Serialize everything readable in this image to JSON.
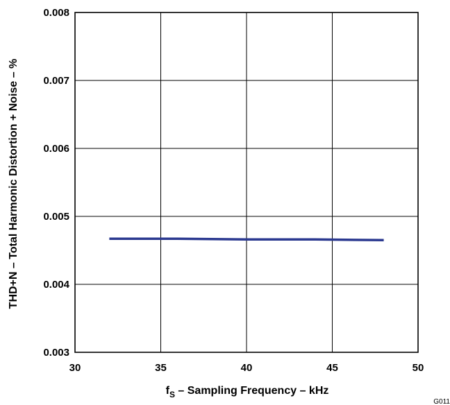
{
  "chart_data": {
    "type": "line",
    "title": "",
    "xlabel_main": "f",
    "xlabel_sub": "S",
    "xlabel_rest": " – Sampling Frequency – kHz",
    "ylabel": "THD+N – Total Harmonic Distortion + Noise – %",
    "xlim": [
      30,
      50
    ],
    "ylim": [
      0.003,
      0.008
    ],
    "xticks": [
      30,
      35,
      40,
      45,
      50
    ],
    "xtick_labels": [
      "30",
      "35",
      "40",
      "45",
      "50"
    ],
    "yticks": [
      0.003,
      0.004,
      0.005,
      0.006,
      0.007,
      0.008
    ],
    "ytick_labels": [
      "0.003",
      "0.004",
      "0.005",
      "0.006",
      "0.007",
      "0.008"
    ],
    "grid": true,
    "series": [
      {
        "color": "#2b3990",
        "x": [
          32,
          36,
          40,
          44,
          48
        ],
        "y": [
          0.00467,
          0.00467,
          0.00466,
          0.00466,
          0.00465
        ]
      }
    ]
  },
  "figure_code": "G011"
}
